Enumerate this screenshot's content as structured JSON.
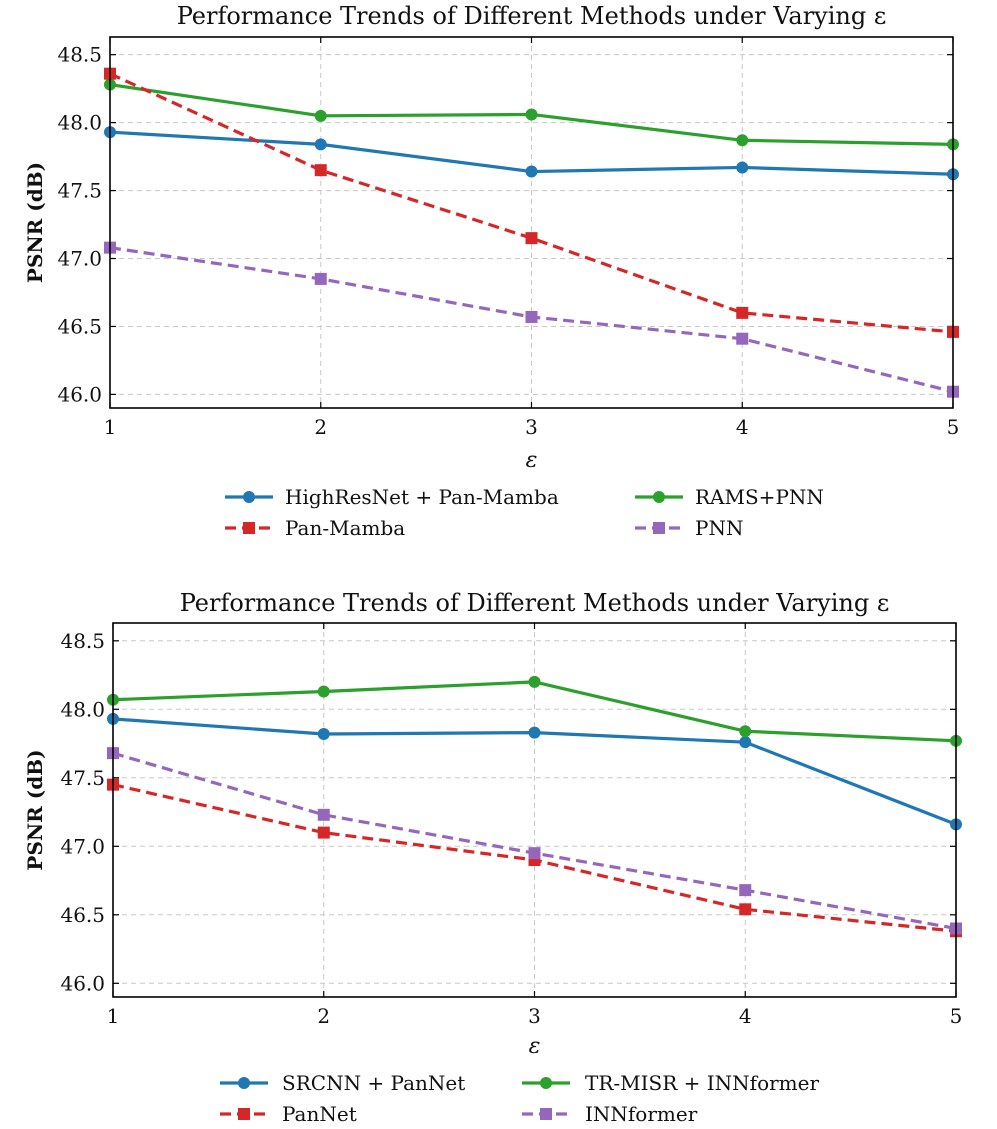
{
  "chart_data": [
    {
      "type": "line",
      "title": "Performance Trends of Different Methods under Varying ε",
      "xlabel": "ε",
      "ylabel": "PSNR (dB)",
      "x": [
        1,
        2,
        3,
        4,
        5
      ],
      "xlim": [
        1,
        5
      ],
      "ylim": [
        45.9,
        48.63
      ],
      "xticks": [
        "1",
        "2",
        "3",
        "4",
        "5"
      ],
      "yticks": [
        "46.0",
        "46.5",
        "47.0",
        "47.5",
        "48.0",
        "48.5"
      ],
      "grid": true,
      "legend_position": "below",
      "series": [
        {
          "name": "HighResNet + Pan-Mamba",
          "values": [
            47.93,
            47.84,
            47.64,
            47.67,
            47.62
          ],
          "color": "#1f77b4",
          "marker": "circle",
          "linestyle": "solid"
        },
        {
          "name": "RAMS+PNN",
          "values": [
            48.28,
            48.05,
            48.06,
            47.87,
            47.84
          ],
          "color": "#2ca02c",
          "marker": "circle",
          "linestyle": "solid"
        },
        {
          "name": "Pan-Mamba",
          "values": [
            48.36,
            47.65,
            47.15,
            46.6,
            46.46
          ],
          "color": "#d62728",
          "marker": "square",
          "linestyle": "dashed"
        },
        {
          "name": "PNN",
          "values": [
            47.08,
            46.85,
            46.57,
            46.41,
            46.02
          ],
          "color": "#9467bd",
          "marker": "square",
          "linestyle": "dashed"
        }
      ]
    },
    {
      "type": "line",
      "title": "Performance Trends of Different Methods under Varying ε",
      "xlabel": "ε",
      "ylabel": "PSNR (dB)",
      "x": [
        1,
        2,
        3,
        4,
        5
      ],
      "xlim": [
        1,
        5
      ],
      "ylim": [
        45.9,
        48.63
      ],
      "xticks": [
        "1",
        "2",
        "3",
        "4",
        "5"
      ],
      "yticks": [
        "46.0",
        "46.5",
        "47.0",
        "47.5",
        "48.0",
        "48.5"
      ],
      "grid": true,
      "legend_position": "below",
      "series": [
        {
          "name": "SRCNN + PanNet",
          "values": [
            47.93,
            47.82,
            47.83,
            47.76,
            47.16
          ],
          "color": "#1f77b4",
          "marker": "circle",
          "linestyle": "solid"
        },
        {
          "name": "TR-MISR + INNformer",
          "values": [
            48.07,
            48.13,
            48.2,
            47.84,
            47.77
          ],
          "color": "#2ca02c",
          "marker": "circle",
          "linestyle": "solid"
        },
        {
          "name": "PanNet",
          "values": [
            47.45,
            47.1,
            46.9,
            46.54,
            46.38
          ],
          "color": "#d62728",
          "marker": "square",
          "linestyle": "dashed"
        },
        {
          "name": "INNformer",
          "values": [
            47.68,
            47.23,
            46.95,
            46.68,
            46.4
          ],
          "color": "#9467bd",
          "marker": "square",
          "linestyle": "dashed"
        }
      ]
    }
  ]
}
